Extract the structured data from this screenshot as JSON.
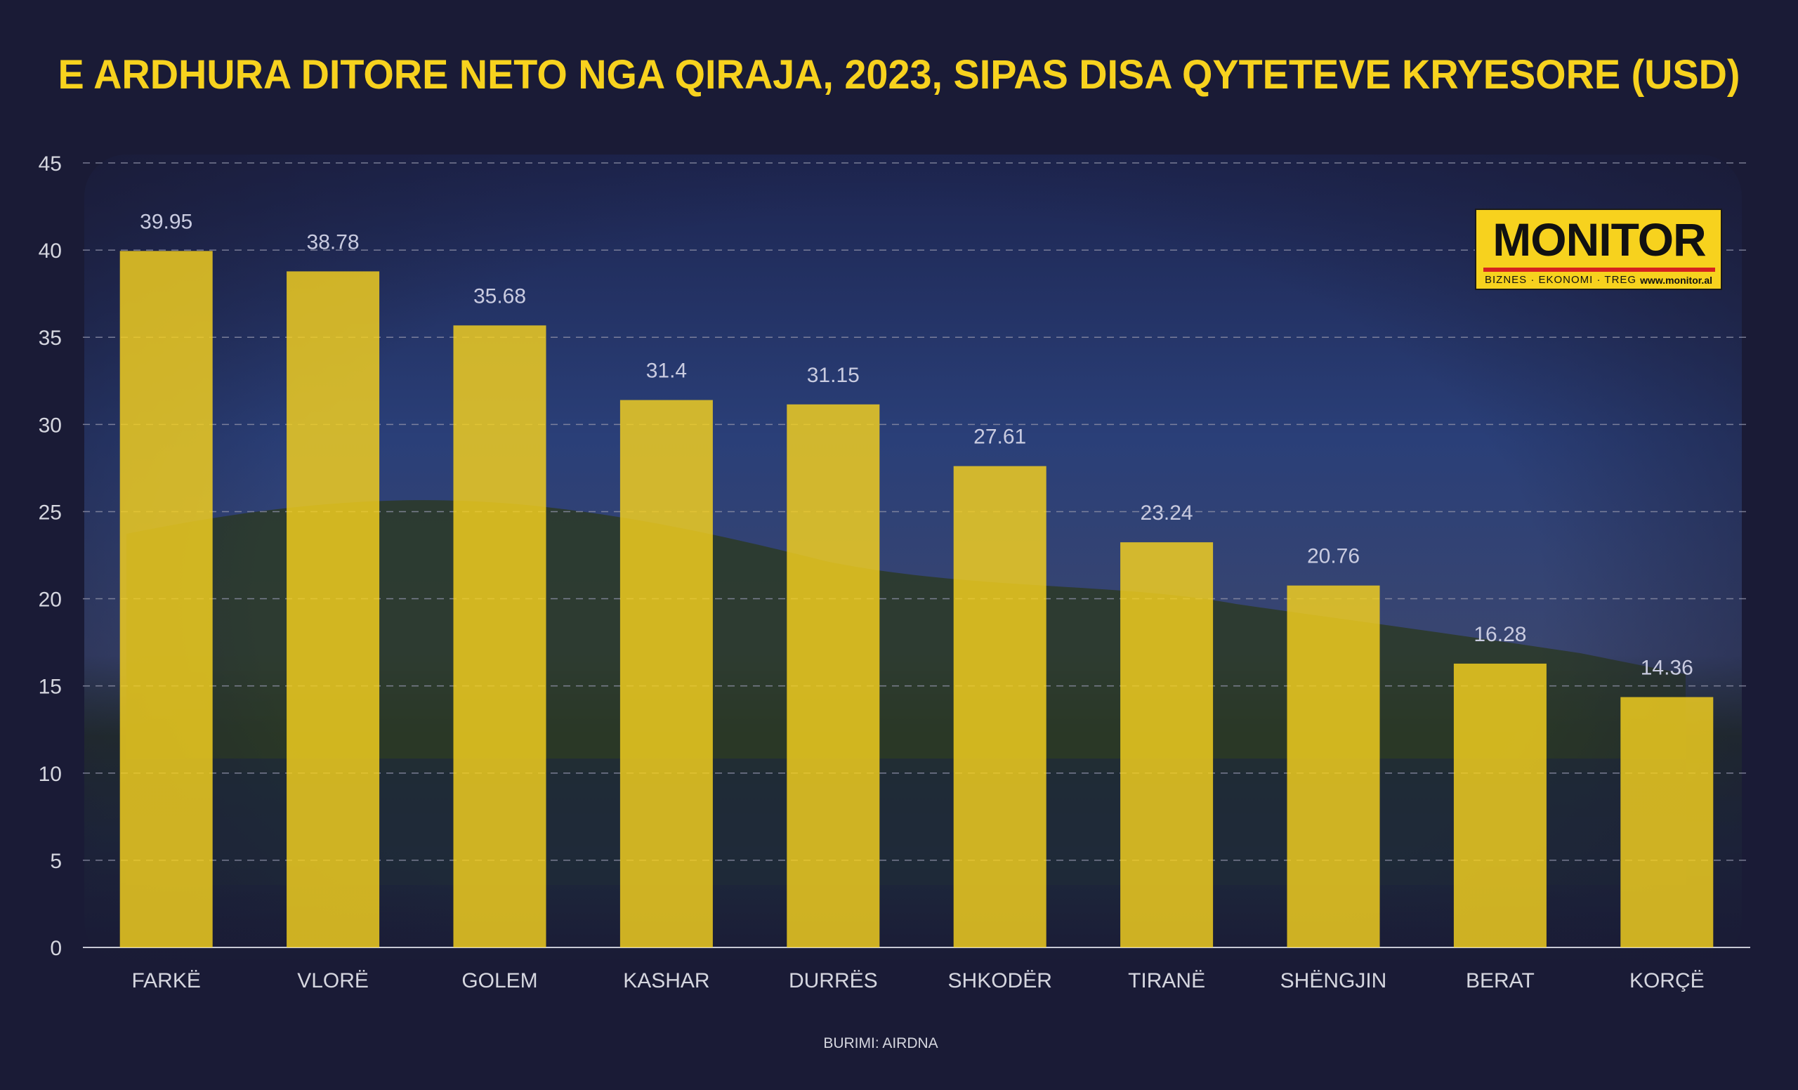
{
  "chart_data": {
    "type": "bar",
    "title": "E ARDHURA DITORE NETO NGA QIRAJA, 2023, SIPAS DISA QYTETEVE KRYESORE (USD)",
    "categories": [
      "FARKË",
      "VLORË",
      "GOLEM",
      "KASHAR",
      "DURRËS",
      "SHKODËR",
      "TIRANË",
      "SHËNGJIN",
      "BERAT",
      "KORÇË"
    ],
    "values": [
      39.95,
      38.78,
      35.68,
      31.4,
      31.15,
      27.61,
      23.24,
      20.76,
      16.28,
      14.36
    ],
    "value_labels": [
      "39.95",
      "38.78",
      "35.68",
      "31.4",
      "31.15",
      "27.61",
      "23.24",
      "20.76",
      "16.28",
      "14.36"
    ],
    "yticks": [
      "0",
      "5",
      "10",
      "15",
      "20",
      "25",
      "30",
      "35",
      "40",
      "45"
    ],
    "ylim": [
      0,
      45
    ],
    "grid": true,
    "source": "BURIMI: AIRDNA"
  },
  "logo": {
    "name": "MONITOR",
    "tagline": "BIZNES · EKONOMI · TREG",
    "url": "www.monitor.al"
  },
  "colors": {
    "background": "#1a1b36",
    "bar": "#f7d21e",
    "title": "#f7d21e",
    "text": "#d5d6df",
    "value_label": "#c9cbe0",
    "grid": "#8f91a8"
  }
}
